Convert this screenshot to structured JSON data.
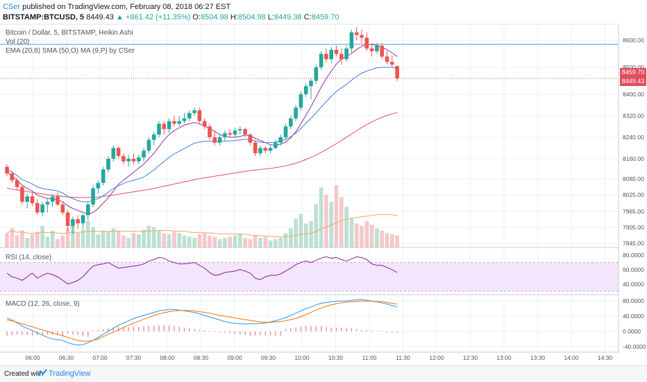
{
  "header": {
    "author": "CSer",
    "published_text": " published on TradingView.com, February 08, 2018 06:27 EST",
    "symbol": "BITSTAMP:BTCUSD, 5",
    "last": "8449.43",
    "change": "▲ +861.42 (+11.35%)",
    "ohlc": {
      "o_label": "O:",
      "o": "8504.98",
      "h_label": "H:",
      "h": "8504.98",
      "l_label": "L:",
      "l": "8449.38",
      "c_label": "C:",
      "c": "8459.70"
    }
  },
  "labels": {
    "main": "Bitcoin / Dollar, 5, BITSTAMP, Heikin Ashi",
    "vol": "Vol (20)",
    "ema": "EMA (20,8) SMA (50,O) MA (9,P) by CSer",
    "rsi": "RSI (14, close)",
    "macd": "MACD (12, 26, close, 9)"
  },
  "price_tags": {
    "upper": "8459.70",
    "lower": "8449.43"
  },
  "footer": {
    "created": "Created with",
    "brand": "TradingView"
  },
  "colors": {
    "up": "#26a69a",
    "down": "#ef5350",
    "ema": "#3f7fd8",
    "sma": "#e04e5c",
    "ma": "#9c2d9c",
    "macd": "#2196f3",
    "signal": "#ff6d00",
    "rsi": "#8e1f8e"
  },
  "chart_data": {
    "type": "candlestick",
    "price_axis_ticks": [
      "8600.00",
      "8500.00",
      "8400.00",
      "8320.00",
      "8240.00",
      "8160.00",
      "8085.00",
      "8025.00",
      "7965.00",
      "7905.00",
      "7845.00"
    ],
    "rsi_axis_ticks": [
      "80.0000",
      "60.0000",
      "40.0000"
    ],
    "macd_axis_ticks": [
      "80.0000",
      "40.0000",
      "0.0000",
      "-40.0000"
    ],
    "x_ticks": [
      "06:00",
      "06:30",
      "07:00",
      "07:30",
      "08:00",
      "08:30",
      "09:00",
      "09:30",
      "10:00",
      "10:30",
      "11:00",
      "11:30",
      "12:00",
      "12:30",
      "13:00",
      "13:30",
      "14:00",
      "14:30"
    ],
    "candles": [
      [
        8130,
        8140,
        8095,
        8105
      ],
      [
        8105,
        8115,
        8070,
        8080
      ],
      [
        8080,
        8090,
        8045,
        8055
      ],
      [
        8055,
        8060,
        7990,
        8000
      ],
      [
        8000,
        8030,
        7975,
        8020
      ],
      [
        8020,
        8035,
        7985,
        7995
      ],
      [
        7995,
        8010,
        7950,
        7960
      ],
      [
        7960,
        8000,
        7945,
        7990
      ],
      [
        7990,
        8010,
        7960,
        8000
      ],
      [
        8000,
        8030,
        7980,
        8020
      ],
      [
        8020,
        8035,
        7985,
        7990
      ],
      [
        7990,
        8000,
        7950,
        7960
      ],
      [
        7960,
        7970,
        7890,
        7910
      ],
      [
        7910,
        7945,
        7880,
        7935
      ],
      [
        7935,
        7950,
        7900,
        7920
      ],
      [
        7920,
        7955,
        7900,
        7950
      ],
      [
        7950,
        8000,
        7930,
        7990
      ],
      [
        7990,
        8060,
        7980,
        8050
      ],
      [
        8050,
        8080,
        8030,
        8070
      ],
      [
        8070,
        8130,
        8060,
        8120
      ],
      [
        8120,
        8170,
        8110,
        8160
      ],
      [
        8160,
        8210,
        8150,
        8200
      ],
      [
        8200,
        8205,
        8160,
        8170
      ],
      [
        8170,
        8180,
        8140,
        8150
      ],
      [
        8150,
        8175,
        8130,
        8160
      ],
      [
        8160,
        8180,
        8140,
        8150
      ],
      [
        8150,
        8175,
        8140,
        8165
      ],
      [
        8165,
        8200,
        8150,
        8190
      ],
      [
        8190,
        8240,
        8180,
        8230
      ],
      [
        8230,
        8260,
        8210,
        8250
      ],
      [
        8250,
        8300,
        8240,
        8290
      ],
      [
        8290,
        8300,
        8250,
        8270
      ],
      [
        8270,
        8310,
        8255,
        8300
      ],
      [
        8300,
        8320,
        8280,
        8290
      ],
      [
        8290,
        8320,
        8280,
        8300
      ],
      [
        8300,
        8330,
        8290,
        8310
      ],
      [
        8310,
        8340,
        8300,
        8330
      ],
      [
        8330,
        8350,
        8320,
        8340
      ],
      [
        8340,
        8350,
        8290,
        8300
      ],
      [
        8300,
        8310,
        8270,
        8280
      ],
      [
        8280,
        8290,
        8230,
        8240
      ],
      [
        8240,
        8260,
        8210,
        8220
      ],
      [
        8220,
        8250,
        8210,
        8240
      ],
      [
        8240,
        8265,
        8225,
        8255
      ],
      [
        8255,
        8270,
        8240,
        8250
      ],
      [
        8250,
        8275,
        8240,
        8265
      ],
      [
        8265,
        8280,
        8250,
        8270
      ],
      [
        8270,
        8275,
        8240,
        8250
      ],
      [
        8250,
        8255,
        8210,
        8220
      ],
      [
        8220,
        8230,
        8170,
        8180
      ],
      [
        8180,
        8210,
        8170,
        8200
      ],
      [
        8200,
        8205,
        8180,
        8190
      ],
      [
        8190,
        8210,
        8180,
        8200
      ],
      [
        8200,
        8230,
        8195,
        8220
      ],
      [
        8220,
        8250,
        8210,
        8240
      ],
      [
        8240,
        8290,
        8230,
        8280
      ],
      [
        8280,
        8320,
        8270,
        8310
      ],
      [
        8310,
        8360,
        8300,
        8350
      ],
      [
        8350,
        8410,
        8340,
        8400
      ],
      [
        8400,
        8440,
        8390,
        8430
      ],
      [
        8430,
        8460,
        8380,
        8450
      ],
      [
        8450,
        8510,
        8440,
        8500
      ],
      [
        8500,
        8560,
        8490,
        8550
      ],
      [
        8550,
        8570,
        8520,
        8530
      ],
      [
        8530,
        8575,
        8515,
        8565
      ],
      [
        8565,
        8580,
        8540,
        8550
      ],
      [
        8550,
        8570,
        8510,
        8530
      ],
      [
        8530,
        8580,
        8520,
        8570
      ],
      [
        8570,
        8640,
        8555,
        8630
      ],
      [
        8630,
        8650,
        8600,
        8620
      ],
      [
        8620,
        8640,
        8590,
        8610
      ],
      [
        8610,
        8630,
        8560,
        8570
      ],
      [
        8570,
        8590,
        8540,
        8560
      ],
      [
        8560,
        8590,
        8550,
        8580
      ],
      [
        8580,
        8590,
        8530,
        8540
      ],
      [
        8540,
        8560,
        8510,
        8520
      ],
      [
        8520,
        8545,
        8500,
        8510
      ],
      [
        8505,
        8505,
        8449,
        8459
      ]
    ],
    "volumes": [
      60,
      80,
      50,
      70,
      40,
      55,
      65,
      90,
      45,
      70,
      35,
      50,
      80,
      95,
      60,
      75,
      110,
      85,
      55,
      70,
      65,
      80,
      70,
      50,
      40,
      60,
      55,
      75,
      90,
      85,
      70,
      60,
      55,
      65,
      60,
      50,
      45,
      40,
      55,
      60,
      50,
      45,
      35,
      40,
      45,
      50,
      55,
      40,
      35,
      50,
      40,
      45,
      30,
      35,
      40,
      60,
      80,
      120,
      140,
      100,
      110,
      180,
      250,
      220,
      190,
      260,
      210,
      170,
      120,
      100,
      90,
      110,
      95,
      80,
      70,
      60,
      55,
      50
    ],
    "ema": [
      8120,
      8110,
      8098,
      8082,
      8075,
      8066,
      8055,
      8050,
      8046,
      8044,
      8040,
      8033,
      8020,
      8012,
      8004,
      8000,
      8000,
      8005,
      8012,
      8022,
      8035,
      8050,
      8060,
      8068,
      8075,
      8080,
      8085,
      8092,
      8105,
      8118,
      8135,
      8150,
      8165,
      8178,
      8188,
      8198,
      8208,
      8218,
      8222,
      8225,
      8225,
      8224,
      8224,
      8225,
      8226,
      8228,
      8230,
      8232,
      8231,
      8226,
      8222,
      8220,
      8220,
      8222,
      8226,
      8232,
      8242,
      8255,
      8272,
      8292,
      8310,
      8330,
      8352,
      8372,
      8392,
      8410,
      8424,
      8436,
      8452,
      8466,
      8478,
      8486,
      8492,
      8498,
      8500,
      8500,
      8500,
      8496
    ],
    "sma": [
      8050,
      8047,
      8044,
      8041,
      8038,
      8035,
      8032,
      8029,
      8026,
      8024,
      8022,
      8020,
      8018,
      8017,
      8016,
      8016,
      8016,
      8017,
      8018,
      8020,
      8022,
      8025,
      8028,
      8031,
      8034,
      8037,
      8040,
      8043,
      8046,
      8050,
      8054,
      8058,
      8062,
      8066,
      8070,
      8074,
      8078,
      8082,
      8086,
      8089,
      8092,
      8095,
      8098,
      8101,
      8104,
      8107,
      8110,
      8113,
      8116,
      8118,
      8120,
      8122,
      8124,
      8127,
      8130,
      8134,
      8138,
      8143,
      8150,
      8157,
      8165,
      8174,
      8184,
      8194,
      8205,
      8216,
      8228,
      8240,
      8252,
      8264,
      8276,
      8287,
      8297,
      8306,
      8314,
      8321,
      8327,
      8332
    ],
    "ma": [
      8110,
      8095,
      8080,
      8062,
      8050,
      8040,
      8025,
      8018,
      8012,
      8010,
      8008,
      8000,
      7985,
      7975,
      7968,
      7960,
      7955,
      7960,
      7975,
      7995,
      8015,
      8040,
      8065,
      8080,
      8095,
      8110,
      8125,
      8140,
      8160,
      8180,
      8205,
      8230,
      8250,
      8265,
      8275,
      8285,
      8290,
      8295,
      8290,
      8282,
      8272,
      8262,
      8250,
      8242,
      8240,
      8240,
      8243,
      8248,
      8245,
      8236,
      8228,
      8220,
      8212,
      8210,
      8214,
      8222,
      8238,
      8260,
      8290,
      8322,
      8354,
      8390,
      8426,
      8458,
      8486,
      8512,
      8530,
      8540,
      8552,
      8566,
      8578,
      8585,
      8585,
      8582,
      8575,
      8565,
      8554,
      8540
    ],
    "rsi": [
      55,
      50,
      48,
      45,
      50,
      55,
      48,
      52,
      55,
      53,
      50,
      45,
      40,
      42,
      45,
      50,
      58,
      65,
      67,
      68,
      70,
      66,
      62,
      63,
      64,
      65,
      66,
      68,
      72,
      74,
      77,
      76,
      72,
      70,
      68,
      68,
      69,
      70,
      66,
      62,
      56,
      52,
      53,
      56,
      57,
      58,
      60,
      58,
      55,
      48,
      46,
      50,
      52,
      52,
      54,
      58,
      62,
      67,
      70,
      72,
      70,
      73,
      76,
      78,
      76,
      77,
      74,
      72,
      75,
      78,
      77,
      74,
      68,
      66,
      66,
      63,
      60,
      56
    ],
    "macd": [
      35,
      30,
      22,
      14,
      8,
      2,
      -4,
      -10,
      -16,
      -20,
      -22,
      -24,
      -30,
      -34,
      -36,
      -35,
      -30,
      -24,
      -16,
      -8,
      0,
      8,
      16,
      22,
      28,
      34,
      38,
      42,
      46,
      50,
      54,
      56,
      58,
      58,
      56,
      54,
      52,
      50,
      46,
      42,
      38,
      34,
      30,
      26,
      23,
      21,
      20,
      20,
      20,
      20,
      21,
      22,
      25,
      28,
      32,
      36,
      42,
      48,
      54,
      60,
      64,
      70,
      74,
      76,
      78,
      80,
      80,
      80,
      82,
      83,
      84,
      82,
      80,
      78,
      75,
      72,
      68,
      64
    ],
    "signal": [
      30,
      28,
      24,
      20,
      16,
      12,
      8,
      4,
      0,
      -4,
      -8,
      -12,
      -16,
      -20,
      -24,
      -26,
      -26,
      -24,
      -20,
      -14,
      -8,
      -2,
      4,
      10,
      16,
      22,
      27,
      32,
      37,
      42,
      46,
      49,
      52,
      54,
      55,
      55,
      55,
      54,
      52,
      50,
      48,
      45,
      42,
      40,
      38,
      35,
      33,
      31,
      29,
      27,
      25,
      24,
      24,
      25,
      26,
      28,
      31,
      34,
      39,
      44,
      50,
      56,
      61,
      66,
      70,
      73,
      75,
      77,
      78,
      79,
      80,
      80,
      80,
      79,
      78,
      76,
      74,
      72
    ],
    "hist": [
      -12,
      -10,
      -8,
      -9,
      -10,
      -12,
      -10,
      -9,
      -8,
      -9,
      -10,
      -12,
      -6,
      -8,
      -10,
      -12,
      -14,
      2,
      4,
      6,
      8,
      10,
      12,
      12,
      11,
      12,
      12,
      13,
      14,
      15,
      16,
      16,
      16,
      14,
      12,
      10,
      8,
      6,
      4,
      3,
      2,
      -2,
      -3,
      -4,
      -5,
      -6,
      -8,
      -10,
      -12,
      -11,
      -10,
      -10,
      -11,
      -12,
      -12,
      6,
      8,
      10,
      12,
      14,
      14,
      14,
      14,
      12,
      10,
      10,
      9,
      8,
      8,
      6,
      4,
      3,
      2,
      1,
      -1,
      -2,
      -3,
      -4
    ]
  }
}
